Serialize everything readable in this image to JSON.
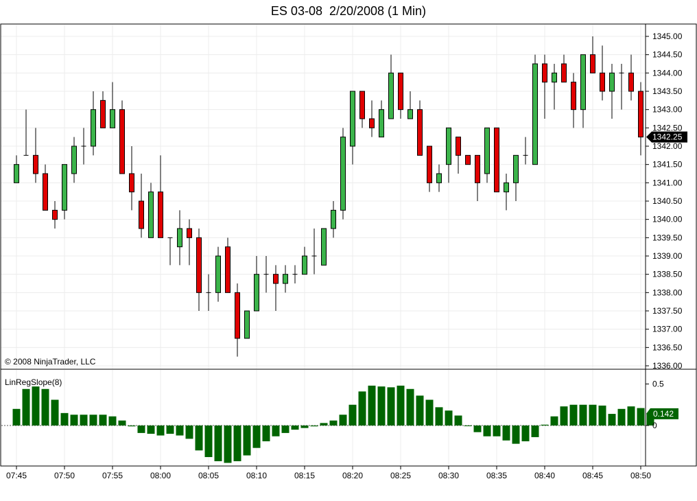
{
  "chart_data": {
    "type": "candlestick",
    "title": "ES 03-08  2/20/2008 (1 Min)",
    "copyright": "© 2008 NinjaTrader, LLC",
    "grid": true,
    "colors": {
      "up": "#3cb44b",
      "down": "#e00000",
      "indicator": "#006400",
      "marker_bg": "#000000"
    },
    "price_axis": {
      "range": [
        1336.0,
        1345.25
      ],
      "ticks": [
        "1336.00",
        "1336.50",
        "1337.00",
        "1337.50",
        "1338.00",
        "1338.50",
        "1339.00",
        "1339.50",
        "1340.00",
        "1340.50",
        "1341.00",
        "1341.50",
        "1342.00",
        "1342.50",
        "1343.00",
        "1343.50",
        "1344.00",
        "1344.50",
        "1345.00"
      ],
      "last_price": 1342.25,
      "last_price_label": "1342.25"
    },
    "time_axis": {
      "labels": [
        "07:45",
        "07:50",
        "07:55",
        "08:00",
        "08:05",
        "08:10",
        "08:15",
        "08:20",
        "08:25",
        "08:30",
        "08:35",
        "08:40",
        "08:45",
        "08:50"
      ],
      "label_minutes": [
        465,
        470,
        475,
        480,
        485,
        490,
        495,
        500,
        505,
        510,
        515,
        520,
        525,
        530
      ]
    },
    "candles": [
      {
        "t": 465,
        "o": 1341.0,
        "h": 1341.75,
        "l": 1341.0,
        "c": 1341.5
      },
      {
        "t": 466,
        "o": 1341.75,
        "h": 1343.0,
        "l": 1341.75,
        "c": 1341.75
      },
      {
        "t": 467,
        "o": 1341.75,
        "h": 1342.5,
        "l": 1341.0,
        "c": 1341.25
      },
      {
        "t": 468,
        "o": 1341.25,
        "h": 1341.5,
        "l": 1340.25,
        "c": 1340.25
      },
      {
        "t": 469,
        "o": 1340.25,
        "h": 1340.5,
        "l": 1339.75,
        "c": 1340.0
      },
      {
        "t": 470,
        "o": 1340.25,
        "h": 1341.5,
        "l": 1340.0,
        "c": 1341.5
      },
      {
        "t": 471,
        "o": 1341.25,
        "h": 1342.25,
        "l": 1341.0,
        "c": 1342.0
      },
      {
        "t": 472,
        "o": 1342.0,
        "h": 1342.5,
        "l": 1341.5,
        "c": 1342.0
      },
      {
        "t": 473,
        "o": 1342.0,
        "h": 1343.5,
        "l": 1341.75,
        "c": 1343.0
      },
      {
        "t": 474,
        "o": 1343.25,
        "h": 1343.5,
        "l": 1342.5,
        "c": 1342.5
      },
      {
        "t": 475,
        "o": 1342.5,
        "h": 1343.75,
        "l": 1342.5,
        "c": 1343.0
      },
      {
        "t": 476,
        "o": 1343.0,
        "h": 1343.25,
        "l": 1341.25,
        "c": 1341.25
      },
      {
        "t": 477,
        "o": 1341.25,
        "h": 1342.0,
        "l": 1340.25,
        "c": 1340.75
      },
      {
        "t": 478,
        "o": 1340.5,
        "h": 1341.25,
        "l": 1339.5,
        "c": 1339.75
      },
      {
        "t": 479,
        "o": 1339.5,
        "h": 1341.0,
        "l": 1339.5,
        "c": 1340.75
      },
      {
        "t": 480,
        "o": 1340.75,
        "h": 1341.75,
        "l": 1339.5,
        "c": 1339.5
      },
      {
        "t": 481,
        "o": 1339.5,
        "h": 1339.5,
        "l": 1338.75,
        "c": 1339.5
      },
      {
        "t": 482,
        "o": 1339.25,
        "h": 1340.25,
        "l": 1338.75,
        "c": 1339.75
      },
      {
        "t": 483,
        "o": 1339.75,
        "h": 1340.0,
        "l": 1338.75,
        "c": 1339.5
      },
      {
        "t": 484,
        "o": 1339.5,
        "h": 1339.75,
        "l": 1337.5,
        "c": 1338.0
      },
      {
        "t": 485,
        "o": 1338.0,
        "h": 1338.5,
        "l": 1337.5,
        "c": 1338.0
      },
      {
        "t": 486,
        "o": 1338.0,
        "h": 1339.25,
        "l": 1337.75,
        "c": 1339.0
      },
      {
        "t": 487,
        "o": 1339.25,
        "h": 1339.5,
        "l": 1338.0,
        "c": 1338.0
      },
      {
        "t": 488,
        "o": 1338.0,
        "h": 1338.25,
        "l": 1336.25,
        "c": 1336.75
      },
      {
        "t": 489,
        "o": 1336.75,
        "h": 1337.5,
        "l": 1336.75,
        "c": 1337.5
      },
      {
        "t": 490,
        "o": 1337.5,
        "h": 1339.0,
        "l": 1337.5,
        "c": 1338.5
      },
      {
        "t": 491,
        "o": 1338.5,
        "h": 1339.0,
        "l": 1338.0,
        "c": 1338.5
      },
      {
        "t": 492,
        "o": 1338.5,
        "h": 1338.75,
        "l": 1337.5,
        "c": 1338.25
      },
      {
        "t": 493,
        "o": 1338.25,
        "h": 1338.75,
        "l": 1338.0,
        "c": 1338.5
      },
      {
        "t": 494,
        "o": 1338.5,
        "h": 1338.75,
        "l": 1338.25,
        "c": 1338.5
      },
      {
        "t": 495,
        "o": 1338.5,
        "h": 1339.25,
        "l": 1338.5,
        "c": 1339.0
      },
      {
        "t": 496,
        "o": 1339.0,
        "h": 1339.75,
        "l": 1338.5,
        "c": 1339.0
      },
      {
        "t": 497,
        "o": 1338.75,
        "h": 1339.75,
        "l": 1338.75,
        "c": 1339.75
      },
      {
        "t": 498,
        "o": 1339.75,
        "h": 1340.5,
        "l": 1339.5,
        "c": 1340.25
      },
      {
        "t": 499,
        "o": 1340.25,
        "h": 1342.5,
        "l": 1340.0,
        "c": 1342.25
      },
      {
        "t": 500,
        "o": 1342.0,
        "h": 1343.5,
        "l": 1341.5,
        "c": 1343.5
      },
      {
        "t": 501,
        "o": 1343.5,
        "h": 1343.5,
        "l": 1342.5,
        "c": 1342.75
      },
      {
        "t": 502,
        "o": 1342.75,
        "h": 1343.25,
        "l": 1342.25,
        "c": 1342.5
      },
      {
        "t": 503,
        "o": 1342.25,
        "h": 1343.25,
        "l": 1342.25,
        "c": 1343.0
      },
      {
        "t": 504,
        "o": 1342.75,
        "h": 1344.5,
        "l": 1342.75,
        "c": 1344.0
      },
      {
        "t": 505,
        "o": 1344.0,
        "h": 1344.0,
        "l": 1342.75,
        "c": 1343.0
      },
      {
        "t": 506,
        "o": 1342.75,
        "h": 1343.5,
        "l": 1342.75,
        "c": 1343.0
      },
      {
        "t": 507,
        "o": 1343.0,
        "h": 1343.25,
        "l": 1341.75,
        "c": 1341.75
      },
      {
        "t": 508,
        "o": 1342.0,
        "h": 1342.0,
        "l": 1340.75,
        "c": 1341.0
      },
      {
        "t": 509,
        "o": 1341.0,
        "h": 1341.5,
        "l": 1340.75,
        "c": 1341.25
      },
      {
        "t": 510,
        "o": 1341.5,
        "h": 1342.5,
        "l": 1341.0,
        "c": 1342.5
      },
      {
        "t": 511,
        "o": 1342.25,
        "h": 1342.25,
        "l": 1341.25,
        "c": 1341.75
      },
      {
        "t": 512,
        "o": 1341.75,
        "h": 1341.75,
        "l": 1341.5,
        "c": 1341.5
      },
      {
        "t": 513,
        "o": 1341.75,
        "h": 1341.75,
        "l": 1340.5,
        "c": 1341.0
      },
      {
        "t": 514,
        "o": 1341.25,
        "h": 1342.5,
        "l": 1341.0,
        "c": 1342.5
      },
      {
        "t": 515,
        "o": 1342.5,
        "h": 1342.5,
        "l": 1340.75,
        "c": 1340.75
      },
      {
        "t": 516,
        "o": 1340.75,
        "h": 1341.25,
        "l": 1340.25,
        "c": 1341.0
      },
      {
        "t": 517,
        "o": 1341.0,
        "h": 1341.75,
        "l": 1340.5,
        "c": 1341.75
      },
      {
        "t": 518,
        "o": 1341.75,
        "h": 1342.25,
        "l": 1341.5,
        "c": 1341.75
      },
      {
        "t": 519,
        "o": 1341.5,
        "h": 1344.5,
        "l": 1341.5,
        "c": 1344.25
      },
      {
        "t": 520,
        "o": 1344.25,
        "h": 1344.5,
        "l": 1342.75,
        "c": 1343.75
      },
      {
        "t": 521,
        "o": 1343.75,
        "h": 1344.25,
        "l": 1343.0,
        "c": 1344.0
      },
      {
        "t": 522,
        "o": 1344.25,
        "h": 1344.5,
        "l": 1343.75,
        "c": 1343.75
      },
      {
        "t": 523,
        "o": 1343.75,
        "h": 1344.0,
        "l": 1342.5,
        "c": 1343.0
      },
      {
        "t": 524,
        "o": 1343.0,
        "h": 1344.5,
        "l": 1342.5,
        "c": 1344.5
      },
      {
        "t": 525,
        "o": 1344.5,
        "h": 1345.0,
        "l": 1344.0,
        "c": 1344.0
      },
      {
        "t": 526,
        "o": 1344.0,
        "h": 1344.75,
        "l": 1343.25,
        "c": 1343.5
      },
      {
        "t": 527,
        "o": 1343.5,
        "h": 1344.25,
        "l": 1342.75,
        "c": 1344.0
      },
      {
        "t": 528,
        "o": 1344.0,
        "h": 1344.25,
        "l": 1343.0,
        "c": 1344.0
      },
      {
        "t": 529,
        "o": 1344.0,
        "h": 1344.5,
        "l": 1343.25,
        "c": 1343.5
      },
      {
        "t": 530,
        "o": 1343.5,
        "h": 1343.75,
        "l": 1341.75,
        "c": 1342.25
      }
    ],
    "indicator": {
      "name": "LinRegSlope(8)",
      "range": [
        -0.45,
        0.65
      ],
      "ticks": [
        "0.5",
        "0"
      ],
      "tick_values": [
        0.5,
        0
      ],
      "last_value": 0.142,
      "last_value_label": "0.142",
      "values": [
        0.2,
        0.44,
        0.47,
        0.44,
        0.31,
        0.15,
        0.13,
        0.13,
        0.13,
        0.13,
        0.11,
        0.06,
        -0.01,
        -0.09,
        -0.1,
        -0.12,
        -0.1,
        -0.12,
        -0.16,
        -0.3,
        -0.38,
        -0.43,
        -0.45,
        -0.43,
        -0.36,
        -0.27,
        -0.19,
        -0.13,
        -0.09,
        -0.05,
        -0.03,
        -0.01,
        0.03,
        0.06,
        0.13,
        0.25,
        0.41,
        0.48,
        0.47,
        0.46,
        0.48,
        0.44,
        0.36,
        0.31,
        0.22,
        0.18,
        0.12,
        0.0,
        -0.08,
        -0.13,
        -0.13,
        -0.18,
        -0.22,
        -0.19,
        -0.14,
        0.01,
        0.11,
        0.23,
        0.25,
        0.25,
        0.25,
        0.24,
        0.14,
        0.2,
        0.23,
        0.21,
        0.142
      ]
    }
  }
}
